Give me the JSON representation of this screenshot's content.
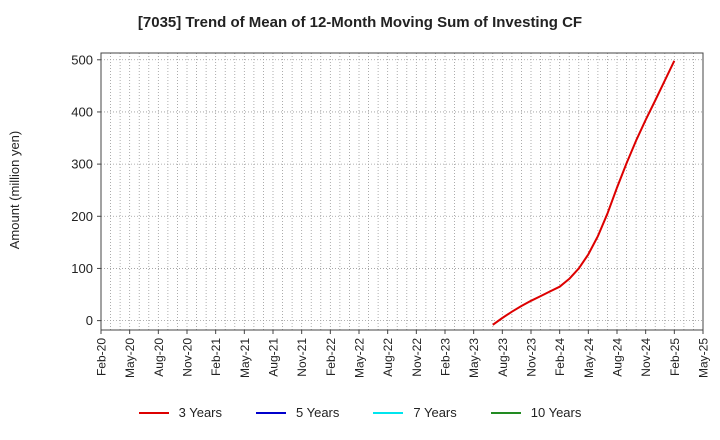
{
  "chart_data": {
    "type": "line",
    "title": "[7035]  Trend of Mean of 12-Month Moving Sum of Investing CF",
    "xlabel": "",
    "ylabel": "Amount (million yen)",
    "ylim": [
      -18,
      513
    ],
    "yticks": [
      0,
      100,
      200,
      300,
      400,
      500
    ],
    "xticks": [
      "Feb-20",
      "May-20",
      "Aug-20",
      "Nov-20",
      "Feb-21",
      "May-21",
      "Aug-21",
      "Nov-21",
      "Feb-22",
      "May-22",
      "Aug-22",
      "Nov-22",
      "Feb-23",
      "May-23",
      "Aug-23",
      "Nov-23",
      "Feb-24",
      "May-24",
      "Aug-24",
      "Nov-24",
      "Feb-25",
      "May-25"
    ],
    "grid": true,
    "legend_position": "bottom",
    "series": [
      {
        "name": "3 Years",
        "color": "#dd0000",
        "x": [
          "Jul-23",
          "Aug-23",
          "Sep-23",
          "Oct-23",
          "Nov-23",
          "Dec-23",
          "Jan-24",
          "Feb-24",
          "Mar-24",
          "Apr-24",
          "May-24",
          "Jun-24",
          "Jul-24",
          "Aug-24",
          "Sep-24",
          "Oct-24",
          "Nov-24",
          "Dec-24",
          "Jan-25",
          "Feb-25"
        ],
        "values": [
          -8,
          5,
          17,
          28,
          38,
          47,
          56,
          65,
          80,
          100,
          127,
          162,
          205,
          255,
          302,
          345,
          385,
          422,
          460,
          498
        ]
      },
      {
        "name": "5 Years",
        "color": "#0000cc",
        "x": [],
        "values": []
      },
      {
        "name": "7 Years",
        "color": "#00e5ee",
        "x": [],
        "values": []
      },
      {
        "name": "10 Years",
        "color": "#228b22",
        "x": [],
        "values": []
      }
    ]
  }
}
